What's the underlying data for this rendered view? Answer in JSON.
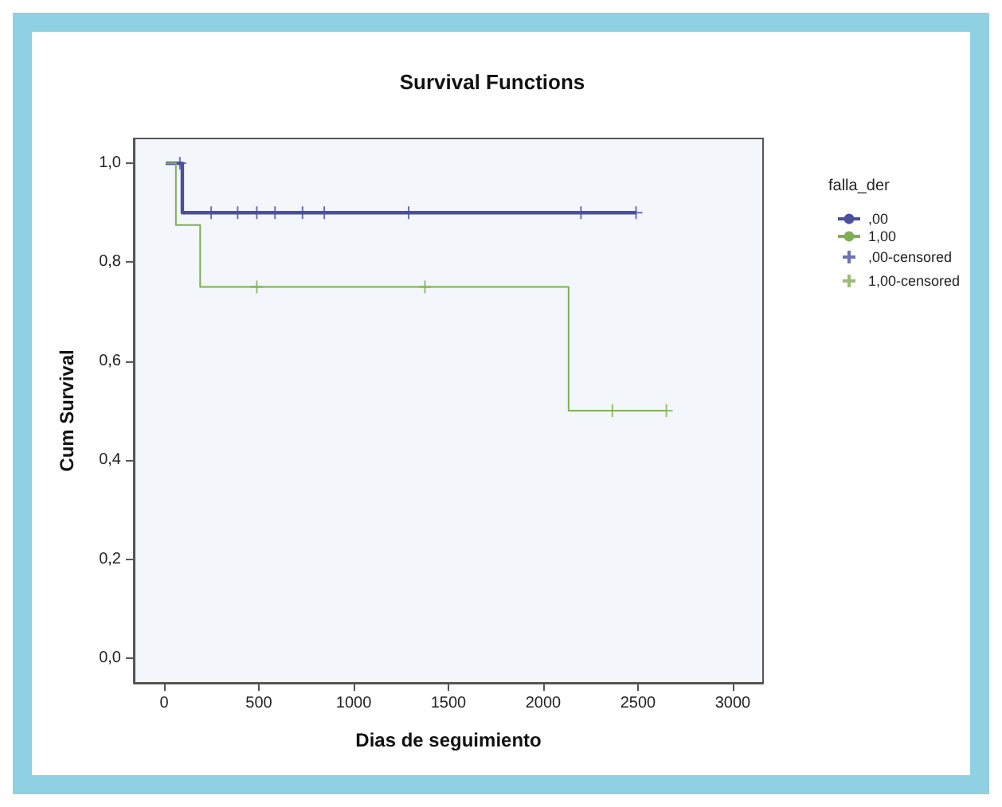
{
  "chart_data": {
    "type": "step",
    "title": "Survival Functions",
    "xlabel": "Dias de seguimiento",
    "ylabel": "Cum Survival",
    "legend_title": "falla_der",
    "series": [
      {
        "name": ",00",
        "color": "#4a4f9e",
        "x": [
          8,
          96,
          2490
        ],
        "values": [
          1,
          0.9,
          0.9
        ]
      },
      {
        "name": "1,00",
        "color": "#7fae55",
        "x": [
          8,
          62,
          190,
          2134,
          2650
        ],
        "values": [
          1,
          0.875,
          0.75,
          0.5,
          0.5
        ]
      },
      {
        "name": ",00-censored",
        "type": "scatter",
        "marker": "cross",
        "color": "#4a4f9e",
        "x": [
          83,
          248,
          388,
          489,
          585,
          730,
          845,
          1290,
          2199,
          2490
        ],
        "values": [
          1,
          0.9,
          0.9,
          0.9,
          0.9,
          0.9,
          0.9,
          0.9,
          0.9,
          0.9
        ]
      },
      {
        "name": "1,00-censored",
        "type": "scatter",
        "marker": "cross",
        "color": "#7fae55",
        "x": [
          489,
          1376,
          2365,
          2650
        ],
        "values": [
          0.75,
          0.75,
          0.5,
          0.5
        ]
      }
    ],
    "xlim": [
      -160,
      3160
    ],
    "xticks": [
      0,
      500,
      1000,
      1500,
      2000,
      2500,
      3000
    ],
    "ylim": [
      -0.05,
      1.05
    ],
    "yticks": [
      {
        "value": 0,
        "label": "0,0"
      },
      {
        "value": 0.2,
        "label": "0,2"
      },
      {
        "value": 0.4,
        "label": "0,4"
      },
      {
        "value": 0.6,
        "label": "0,6"
      },
      {
        "value": 0.8,
        "label": "0,8"
      },
      {
        "value": 1,
        "label": "1,0"
      }
    ],
    "grid": false,
    "legend": "right"
  }
}
